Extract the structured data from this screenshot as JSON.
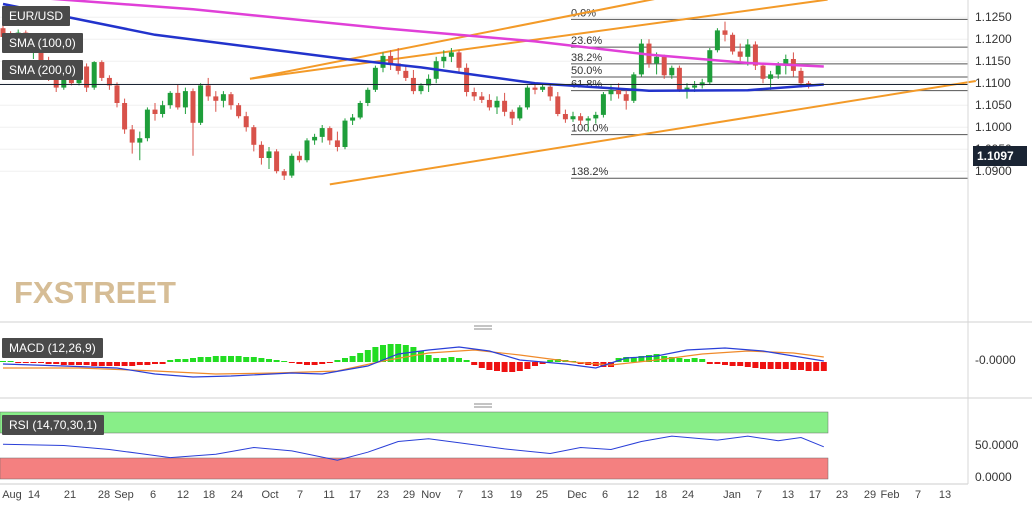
{
  "symbol": "EUR/USD",
  "overlays": {
    "sma100": "SMA (100,0)",
    "sma200": "SMA (200,0)"
  },
  "indicators": {
    "macd": "MACD (12,26,9)",
    "rsi": "RSI (14,70,30,1)"
  },
  "watermark": "FXSTREET",
  "last_price": "1.1097",
  "colors": {
    "bull": "#1e9e3a",
    "bear": "#d8524a",
    "sma100": "#2233cc",
    "sma200": "#e040d8",
    "channel": "#f39a28",
    "macd_pos": "#22dd22",
    "macd_neg": "#ee1111",
    "rsi_over": "#88ee88",
    "rsi_under": "#f48080"
  },
  "chart_data": [
    {
      "type": "candlestick",
      "title": "EUR/USD",
      "ylim": [
        1.0865,
        1.13
      ],
      "y_ticks": [
        "1.0900",
        "1.0950",
        "1.1000",
        "1.1050",
        "1.1100",
        "1.1150",
        "1.1200",
        "1.1250"
      ],
      "x_ticks": [
        "Aug",
        "14",
        "21",
        "28",
        "Sep",
        "6",
        "12",
        "18",
        "24",
        "Oct",
        "7",
        "11",
        "17",
        "23",
        "29",
        "Nov",
        "7",
        "13",
        "19",
        "25",
        "Dec",
        "6",
        "12",
        "18",
        "24",
        "Jan",
        "7",
        "13",
        "17",
        "23",
        "29",
        "Feb",
        "7",
        "13"
      ],
      "candles": [
        [
          1.1225,
          1.1235,
          1.1195,
          1.1205
        ],
        [
          1.1205,
          1.1218,
          1.118,
          1.119
        ],
        [
          1.119,
          1.1222,
          1.1185,
          1.1215
        ],
        [
          1.1215,
          1.122,
          1.117,
          1.1175
        ],
        [
          1.1175,
          1.119,
          1.1155,
          1.1185
        ],
        [
          1.1185,
          1.1195,
          1.114,
          1.115
        ],
        [
          1.115,
          1.116,
          1.1105,
          1.1115
        ],
        [
          1.1115,
          1.1125,
          1.108,
          1.109
        ],
        [
          1.109,
          1.112,
          1.1085,
          1.111
        ],
        [
          1.111,
          1.1125,
          1.1095,
          1.11
        ],
        [
          1.11,
          1.1145,
          1.1095,
          1.1138
        ],
        [
          1.1138,
          1.1145,
          1.108,
          1.109
        ],
        [
          1.109,
          1.115,
          1.1085,
          1.1148
        ],
        [
          1.1148,
          1.1152,
          1.1105,
          1.1112
        ],
        [
          1.1112,
          1.1118,
          1.1085,
          1.1095
        ],
        [
          1.1095,
          1.1102,
          1.1045,
          1.1055
        ],
        [
          1.1055,
          1.1065,
          1.0985,
          1.0995
        ],
        [
          1.0995,
          1.1005,
          1.094,
          1.0965
        ],
        [
          1.0965,
          1.099,
          1.0925,
          1.0975
        ],
        [
          1.0975,
          1.1045,
          1.0968,
          1.104
        ],
        [
          1.104,
          1.1055,
          1.1015,
          1.103
        ],
        [
          1.103,
          1.106,
          1.1022,
          1.105
        ],
        [
          1.105,
          1.1082,
          1.1042,
          1.1078
        ],
        [
          1.1078,
          1.1098,
          1.104,
          1.1045
        ],
        [
          1.1045,
          1.109,
          1.103,
          1.1082
        ],
        [
          1.1082,
          1.1088,
          1.0935,
          1.101
        ],
        [
          1.101,
          1.11,
          1.1005,
          1.1095
        ],
        [
          1.1095,
          1.1112,
          1.106,
          1.107
        ],
        [
          1.107,
          1.1082,
          1.1035,
          1.106
        ],
        [
          1.106,
          1.1082,
          1.1045,
          1.1075
        ],
        [
          1.1075,
          1.108,
          1.104,
          1.105
        ],
        [
          1.105,
          1.1055,
          1.102,
          1.1025
        ],
        [
          1.1025,
          1.1035,
          1.099,
          1.1
        ],
        [
          1.1,
          1.1005,
          1.0945,
          1.096
        ],
        [
          1.096,
          1.0968,
          1.0915,
          1.093
        ],
        [
          1.093,
          1.0955,
          1.0905,
          1.0945
        ],
        [
          1.0945,
          1.095,
          1.0895,
          1.09
        ],
        [
          1.09,
          1.0905,
          1.088,
          1.089
        ],
        [
          1.089,
          1.094,
          1.0885,
          1.0935
        ],
        [
          1.0935,
          1.0945,
          1.092,
          1.0925
        ],
        [
          1.0925,
          1.0975,
          1.092,
          1.097
        ],
        [
          1.097,
          1.0985,
          1.096,
          1.0978
        ],
        [
          1.0978,
          1.1005,
          1.0965,
          1.0998
        ],
        [
          1.0998,
          1.1002,
          1.096,
          1.097
        ],
        [
          1.097,
          1.099,
          1.0945,
          1.0955
        ],
        [
          1.0955,
          1.102,
          1.095,
          1.1015
        ],
        [
          1.1015,
          1.103,
          1.1005,
          1.1022
        ],
        [
          1.1022,
          1.106,
          1.1018,
          1.1055
        ],
        [
          1.1055,
          1.109,
          1.1048,
          1.1085
        ],
        [
          1.1085,
          1.114,
          1.108,
          1.1135
        ],
        [
          1.1135,
          1.117,
          1.1125,
          1.1162
        ],
        [
          1.1162,
          1.1175,
          1.113,
          1.1145
        ],
        [
          1.1145,
          1.118,
          1.112,
          1.1128
        ],
        [
          1.1128,
          1.114,
          1.1105,
          1.1112
        ],
        [
          1.1112,
          1.113,
          1.1075,
          1.1082
        ],
        [
          1.1082,
          1.11,
          1.1075,
          1.1095
        ],
        [
          1.1095,
          1.112,
          1.108,
          1.111
        ],
        [
          1.111,
          1.116,
          1.11,
          1.115
        ],
        [
          1.115,
          1.1175,
          1.1135,
          1.116
        ],
        [
          1.116,
          1.118,
          1.1148,
          1.117
        ],
        [
          1.117,
          1.1175,
          1.1125,
          1.1135
        ],
        [
          1.1135,
          1.1145,
          1.107,
          1.108
        ],
        [
          1.108,
          1.109,
          1.106,
          1.107
        ],
        [
          1.107,
          1.108,
          1.1055,
          1.1062
        ],
        [
          1.1062,
          1.1075,
          1.1038,
          1.1045
        ],
        [
          1.1045,
          1.107,
          1.103,
          1.106
        ],
        [
          1.106,
          1.1078,
          1.1025,
          1.1035
        ],
        [
          1.1035,
          1.104,
          1.1005,
          1.102
        ],
        [
          1.102,
          1.105,
          1.1015,
          1.1045
        ],
        [
          1.1045,
          1.1095,
          1.104,
          1.109
        ],
        [
          1.109,
          1.11,
          1.1075,
          1.1085
        ],
        [
          1.1085,
          1.1098,
          1.108,
          1.1092
        ],
        [
          1.1092,
          1.1095,
          1.106,
          1.107
        ],
        [
          1.107,
          1.108,
          1.1025,
          1.103
        ],
        [
          1.103,
          1.104,
          1.101,
          1.1018
        ],
        [
          1.1018,
          1.1035,
          1.1012,
          1.1025
        ],
        [
          1.1025,
          1.1032,
          1.1005,
          1.1015
        ],
        [
          1.1015,
          1.1025,
          1.099,
          1.102
        ],
        [
          1.102,
          1.1035,
          1.1008,
          1.1028
        ],
        [
          1.1028,
          1.108,
          1.1022,
          1.1075
        ],
        [
          1.1075,
          1.1095,
          1.106,
          1.1085
        ],
        [
          1.1085,
          1.11,
          1.1065,
          1.1075
        ],
        [
          1.1075,
          1.1088,
          1.104,
          1.106
        ],
        [
          1.106,
          1.1125,
          1.1055,
          1.112
        ],
        [
          1.112,
          1.12,
          1.1115,
          1.119
        ],
        [
          1.119,
          1.12,
          1.1135,
          1.1145
        ],
        [
          1.1145,
          1.117,
          1.112,
          1.116
        ],
        [
          1.116,
          1.1165,
          1.111,
          1.1118
        ],
        [
          1.1118,
          1.114,
          1.111,
          1.1135
        ],
        [
          1.1135,
          1.114,
          1.108,
          1.1085
        ],
        [
          1.1085,
          1.11,
          1.1065,
          1.109
        ],
        [
          1.109,
          1.1105,
          1.108,
          1.1095
        ],
        [
          1.1095,
          1.111,
          1.1088,
          1.1102
        ],
        [
          1.1102,
          1.118,
          1.1098,
          1.1175
        ],
        [
          1.1175,
          1.1225,
          1.117,
          1.122
        ],
        [
          1.122,
          1.124,
          1.1195,
          1.121
        ],
        [
          1.121,
          1.1215,
          1.1165,
          1.1172
        ],
        [
          1.1172,
          1.119,
          1.115,
          1.116
        ],
        [
          1.116,
          1.12,
          1.114,
          1.1188
        ],
        [
          1.1188,
          1.1195,
          1.113,
          1.114
        ],
        [
          1.114,
          1.1145,
          1.11,
          1.111
        ],
        [
          1.111,
          1.1128,
          1.1085,
          1.112
        ],
        [
          1.112,
          1.1148,
          1.111,
          1.114
        ],
        [
          1.114,
          1.1165,
          1.112,
          1.1155
        ],
        [
          1.1155,
          1.117,
          1.1115,
          1.1128
        ],
        [
          1.1128,
          1.1135,
          1.109,
          1.11
        ],
        [
          1.11,
          1.1105,
          1.1088,
          1.1097
        ]
      ],
      "sma100": [
        [
          0,
          1.128
        ],
        [
          20,
          1.121
        ],
        [
          45,
          1.1155
        ],
        [
          55,
          1.1136
        ],
        [
          70,
          1.11
        ],
        [
          85,
          1.1083
        ],
        [
          98,
          1.1084
        ],
        [
          108,
          1.1097
        ]
      ],
      "sma200": [
        [
          0,
          1.13
        ],
        [
          25,
          1.1268
        ],
        [
          50,
          1.1225
        ],
        [
          70,
          1.1195
        ],
        [
          85,
          1.1165
        ],
        [
          98,
          1.1146
        ],
        [
          108,
          1.1138
        ]
      ],
      "trendlines": [
        {
          "name": "channel-upper",
          "points": [
            [
              32.5,
              1.111
            ],
            [
              125,
              1.1425
            ]
          ]
        },
        {
          "name": "channel-middle",
          "points": [
            [
              32.5,
              1.111
            ],
            [
              108.5,
              1.129
            ]
          ]
        },
        {
          "name": "channel-lower",
          "points": [
            [
              43,
              1.087
            ],
            [
              128,
              1.1105
            ]
          ]
        }
      ],
      "fibonacci": [
        {
          "label": "0.0%",
          "value": 1.1245
        },
        {
          "label": "23.6%",
          "value": 1.1182
        },
        {
          "label": "38.2%",
          "value": 1.1144
        },
        {
          "label": "50.0%",
          "value": 1.1114
        },
        {
          "label": "61.8%",
          "value": 1.1083
        },
        {
          "label": "100.0%",
          "value": 1.0983
        },
        {
          "label": "138.2%",
          "value": 1.0884
        }
      ],
      "last_price": 1.1097
    },
    {
      "type": "bar",
      "title": "MACD (12,26,9)",
      "y_ticks": [
        "-0.0000"
      ],
      "ylim": [
        -1,
        1
      ],
      "histogram": [
        0.05,
        0.05,
        -0.05,
        -0.05,
        -0.05,
        -0.05,
        -0.1,
        -0.1,
        -0.15,
        -0.15,
        -0.15,
        -0.15,
        -0.2,
        -0.2,
        -0.2,
        -0.2,
        -0.2,
        -0.2,
        -0.15,
        -0.15,
        -0.1,
        -0.1,
        0.1,
        0.15,
        0.15,
        0.2,
        0.25,
        0.25,
        0.3,
        0.3,
        0.3,
        0.3,
        0.25,
        0.25,
        0.2,
        0.15,
        0.1,
        0.05,
        -0.05,
        -0.1,
        -0.15,
        -0.15,
        -0.1,
        -0.05,
        0.1,
        0.2,
        0.3,
        0.45,
        0.6,
        0.75,
        0.85,
        0.9,
        0.9,
        0.85,
        0.75,
        0.55,
        0.35,
        0.2,
        0.2,
        0.25,
        0.2,
        0.1,
        -0.15,
        -0.3,
        -0.4,
        -0.45,
        -0.5,
        -0.5,
        -0.45,
        -0.35,
        -0.2,
        -0.1,
        0.1,
        0.15,
        0.1,
        0.05,
        -0.1,
        -0.15,
        -0.2,
        -0.25,
        -0.25,
        0.2,
        0.25,
        0.25,
        0.3,
        0.35,
        0.4,
        0.3,
        0.25,
        0.2,
        0.15,
        0.2,
        0.15,
        -0.1,
        -0.1,
        -0.15,
        -0.2,
        -0.2,
        -0.25,
        -0.3,
        -0.35,
        -0.35,
        -0.35,
        -0.35,
        -0.4,
        -0.4,
        -0.45,
        -0.45,
        -0.45
      ],
      "macd_line": [
        [
          0,
          -0.1
        ],
        [
          8,
          -0.2
        ],
        [
          15,
          -0.3
        ],
        [
          20,
          -0.6
        ],
        [
          25,
          -0.75
        ],
        [
          30,
          -0.7
        ],
        [
          38,
          -0.55
        ],
        [
          42,
          -0.6
        ],
        [
          48,
          -0.2
        ],
        [
          52,
          0.4
        ],
        [
          56,
          0.6
        ],
        [
          60,
          0.75
        ],
        [
          64,
          0.55
        ],
        [
          68,
          0.1
        ],
        [
          74,
          -0.1
        ],
        [
          78,
          -0.3
        ],
        [
          82,
          0.2
        ],
        [
          86,
          0.3
        ],
        [
          90,
          0.6
        ],
        [
          95,
          0.7
        ],
        [
          100,
          0.55
        ],
        [
          104,
          0.3
        ],
        [
          108,
          0.05
        ]
      ],
      "signal_line": [
        [
          0,
          -0.3
        ],
        [
          10,
          -0.3
        ],
        [
          20,
          -0.45
        ],
        [
          28,
          -0.6
        ],
        [
          36,
          -0.55
        ],
        [
          44,
          -0.45
        ],
        [
          50,
          0.05
        ],
        [
          56,
          0.45
        ],
        [
          62,
          0.6
        ],
        [
          68,
          0.35
        ],
        [
          75,
          0.0
        ],
        [
          80,
          -0.15
        ],
        [
          86,
          0.1
        ],
        [
          92,
          0.4
        ],
        [
          98,
          0.55
        ],
        [
          104,
          0.45
        ],
        [
          108,
          0.25
        ]
      ]
    },
    {
      "type": "line",
      "title": "RSI (14,70,30,1)",
      "ylim": [
        0,
        100
      ],
      "y_ticks": [
        "50.0000",
        "0.0000"
      ],
      "bands": {
        "overbought": 70,
        "oversold": 30
      },
      "rsi": [
        [
          0,
          52
        ],
        [
          8,
          50
        ],
        [
          14,
          44
        ],
        [
          18,
          38
        ],
        [
          22,
          32
        ],
        [
          28,
          37
        ],
        [
          33,
          47
        ],
        [
          38,
          42
        ],
        [
          44,
          28
        ],
        [
          48,
          40
        ],
        [
          52,
          56
        ],
        [
          56,
          60
        ],
        [
          60,
          54
        ],
        [
          66,
          45
        ],
        [
          72,
          38
        ],
        [
          76,
          47
        ],
        [
          80,
          44
        ],
        [
          84,
          56
        ],
        [
          88,
          64
        ],
        [
          94,
          58
        ],
        [
          98,
          64
        ],
        [
          102,
          57
        ],
        [
          105,
          62
        ],
        [
          108,
          48
        ]
      ]
    }
  ]
}
